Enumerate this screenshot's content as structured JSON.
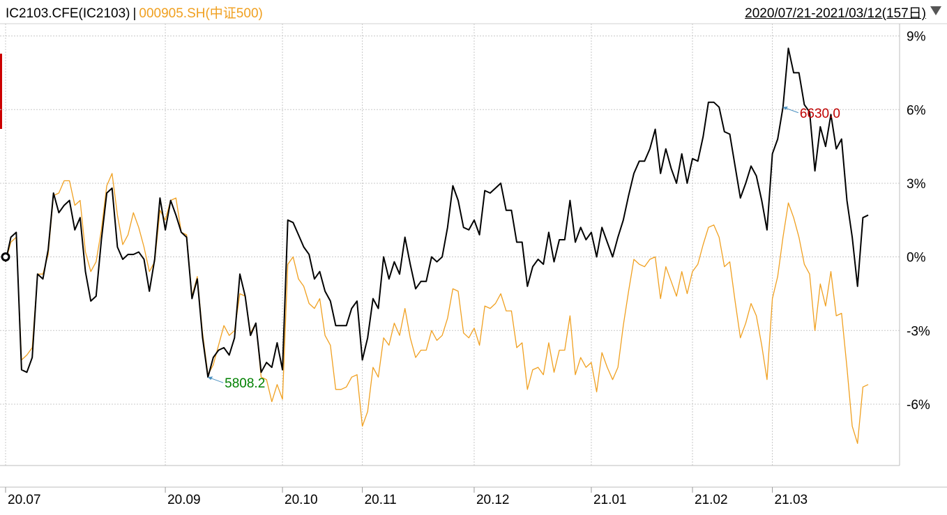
{
  "header": {
    "series1_label": "IC2103.CFE(IC2103)",
    "separator": "|",
    "series2_label": "000905.SH(中证500)",
    "date_range": "2020/07/21-2021/03/12(157日)"
  },
  "colors": {
    "series1": "#000000",
    "series2": "#f0a020",
    "high_label": "#c00000",
    "low_label": "#008000",
    "grid": "#c8c8c8",
    "axis_text": "#000000"
  },
  "chart_data": {
    "type": "line",
    "ylabel_unit": "%",
    "ylim": [
      -8.5,
      9.5
    ],
    "y_ticks": [
      9,
      6,
      3,
      0,
      -3,
      -6
    ],
    "y_tick_labels": [
      "9%",
      "6%",
      "3%",
      "0%",
      "-3%",
      "-6%"
    ],
    "x_tick_labels": [
      "20.07",
      "20.09",
      "20.10",
      "20.11",
      "20.12",
      "21.01",
      "21.02",
      "21.03"
    ],
    "x_tick_index": [
      0,
      30,
      52,
      67,
      88,
      110,
      129,
      144
    ],
    "series": [
      {
        "name": "IC2103.CFE(IC2103)",
        "values": [
          -0.2,
          0.8,
          1.0,
          -4.6,
          -4.7,
          -4.1,
          -0.7,
          -0.9,
          0.3,
          2.6,
          1.8,
          2.1,
          2.3,
          1.1,
          1.6,
          -0.6,
          -1.8,
          -1.6,
          0.7,
          2.6,
          2.8,
          0.4,
          -0.1,
          0.1,
          0.1,
          0.2,
          -0.1,
          -1.4,
          -0.1,
          2.4,
          1.1,
          2.3,
          1.7,
          1.0,
          0.8,
          -1.7,
          -0.9,
          -3.3,
          -4.9,
          -4.1,
          -3.8,
          -3.7,
          -4.0,
          -3.3,
          -0.7,
          -1.6,
          -3.2,
          -2.7,
          -4.7,
          -4.3,
          -4.5,
          -3.5,
          -4.6,
          1.5,
          1.4,
          0.9,
          0.4,
          0.1,
          -0.9,
          -0.6,
          -1.4,
          -1.8,
          -2.8,
          -2.8,
          -2.8,
          -2.1,
          -1.8,
          -4.2,
          -3.3,
          -1.7,
          -2.1,
          0.0,
          -0.9,
          -0.2,
          -0.7,
          0.8,
          -0.3,
          -1.3,
          -1.0,
          -1.0,
          0.0,
          -0.2,
          0.0,
          1.2,
          2.9,
          2.3,
          1.2,
          1.1,
          1.5,
          0.9,
          2.7,
          2.6,
          2.8,
          3.0,
          1.9,
          1.9,
          0.6,
          0.6,
          -1.2,
          -0.4,
          -0.1,
          -0.3,
          1.0,
          -0.2,
          0.7,
          0.7,
          2.3,
          0.6,
          1.2,
          0.7,
          1.0,
          0.0,
          1.2,
          0.6,
          0.0,
          0.8,
          1.5,
          2.5,
          3.4,
          3.9,
          3.9,
          4.4,
          5.2,
          3.4,
          4.4,
          3.6,
          3.0,
          4.2,
          3.0,
          4.0,
          3.9,
          4.9,
          6.3,
          6.3,
          6.1,
          5.1,
          5.0,
          3.7,
          2.4,
          3.0,
          3.7,
          3.3,
          2.3,
          1.1,
          4.2,
          4.8,
          6.1,
          8.5,
          7.5,
          7.5,
          6.2,
          5.9,
          3.5,
          5.3,
          4.5,
          5.8,
          4.4,
          4.8,
          2.3,
          0.8,
          -1.2,
          1.6,
          1.7
        ]
      },
      {
        "name": "000905.SH(中证500)",
        "values": [
          -0.2,
          0.6,
          0.8,
          -4.2,
          -4.0,
          -3.7,
          -0.7,
          -0.7,
          0.1,
          2.5,
          2.6,
          3.1,
          3.1,
          2.1,
          2.3,
          0.2,
          -0.6,
          -0.2,
          1.1,
          2.9,
          3.4,
          1.7,
          0.5,
          0.9,
          1.8,
          1.2,
          0.4,
          -0.6,
          -0.2,
          1.9,
          1.5,
          2.3,
          2.4,
          1.0,
          0.9,
          -1.6,
          -0.8,
          -3.1,
          -4.8,
          -4.4,
          -3.6,
          -2.8,
          -3.2,
          -3.0,
          -1.5,
          -1.6,
          -3.1,
          -2.7,
          -4.9,
          -5.0,
          -5.9,
          -5.2,
          -5.8,
          -0.3,
          0.0,
          -0.9,
          -1.2,
          -1.9,
          -2.1,
          -1.7,
          -3.2,
          -3.6,
          -5.4,
          -5.4,
          -5.3,
          -4.9,
          -4.8,
          -6.9,
          -6.3,
          -4.5,
          -4.9,
          -3.3,
          -3.6,
          -2.7,
          -3.2,
          -2.1,
          -3.3,
          -4.1,
          -3.8,
          -3.8,
          -3.0,
          -3.4,
          -3.2,
          -2.5,
          -1.3,
          -1.4,
          -3.1,
          -3.3,
          -2.9,
          -3.6,
          -2.0,
          -2.1,
          -1.9,
          -1.5,
          -2.2,
          -2.2,
          -3.7,
          -3.5,
          -5.4,
          -4.6,
          -4.5,
          -4.8,
          -3.5,
          -4.7,
          -3.8,
          -3.8,
          -2.4,
          -4.8,
          -4.1,
          -4.5,
          -4.3,
          -5.5,
          -3.9,
          -4.5,
          -5.0,
          -4.5,
          -2.8,
          -1.4,
          -0.1,
          -0.3,
          -0.4,
          -0.1,
          0.0,
          -1.7,
          -0.4,
          -1.0,
          -1.6,
          -0.6,
          -1.5,
          -0.6,
          -0.3,
          0.5,
          1.2,
          1.3,
          0.8,
          -0.4,
          -0.2,
          -1.8,
          -3.3,
          -2.7,
          -1.9,
          -2.4,
          -3.6,
          -5.0,
          -1.7,
          -0.8,
          0.8,
          2.2,
          1.6,
          0.8,
          -0.3,
          -0.7,
          -3.0,
          -1.1,
          -2.0,
          -0.6,
          -2.4,
          -2.3,
          -4.5,
          -6.9,
          -7.6,
          -5.3,
          -5.2
        ]
      }
    ],
    "annotations": {
      "high": {
        "text": "6630.0",
        "series": 0,
        "index": 146
      },
      "low": {
        "text": "5808.2",
        "series": 0,
        "index": 38
      }
    },
    "grid": true
  }
}
